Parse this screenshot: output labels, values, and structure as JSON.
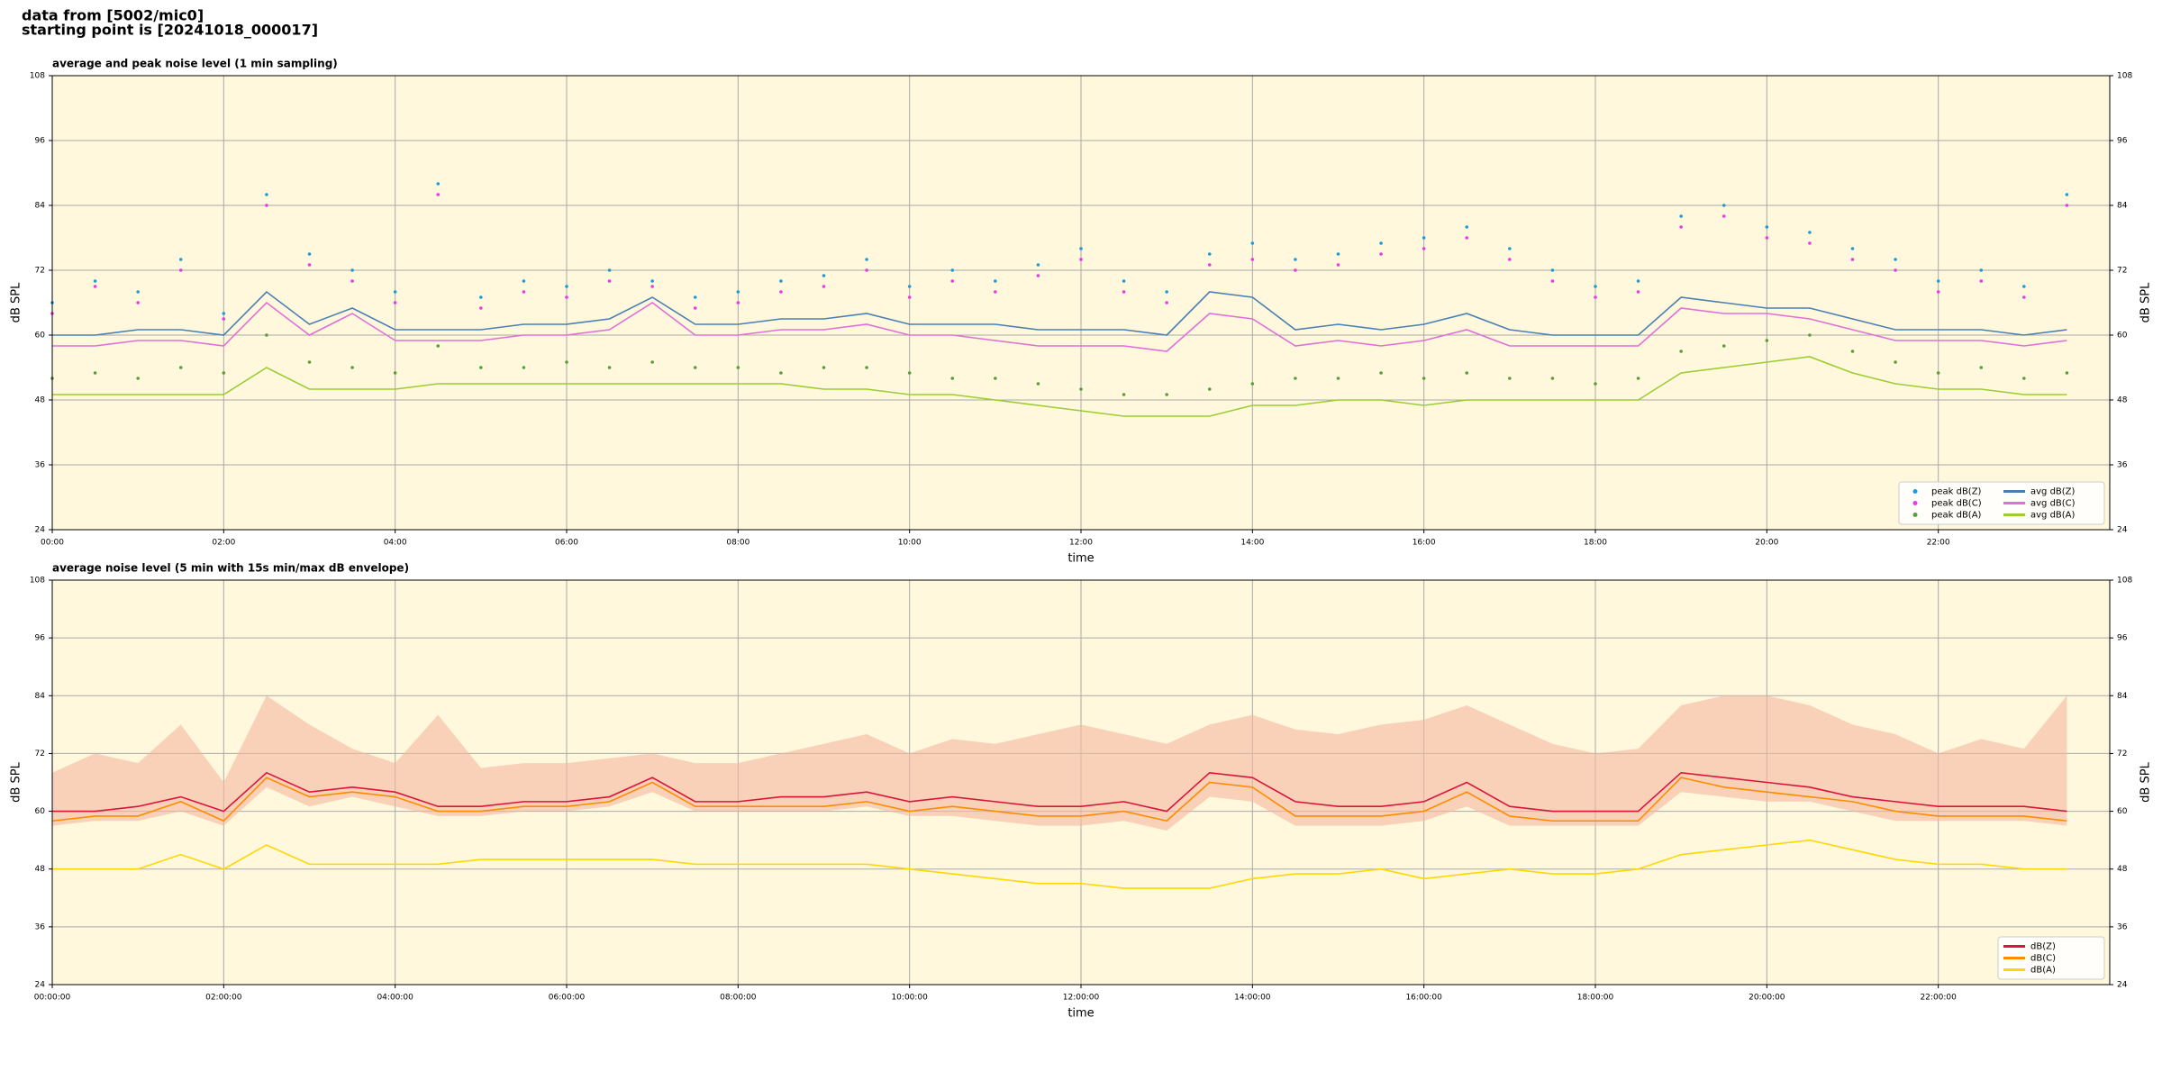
{
  "header": {
    "line1": "data from [5002/mic0]",
    "line2": "starting point is [20241018_000017]"
  },
  "chart_data": [
    {
      "type": "line",
      "title": "average and peak noise level (1 min sampling)",
      "xlabel": "time",
      "ylabel": "dB SPL",
      "x": [
        0,
        30,
        60,
        90,
        120,
        150,
        180,
        210,
        240,
        270,
        300,
        330,
        360,
        390,
        420,
        450,
        480,
        510,
        540,
        570,
        600,
        630,
        660,
        690,
        720,
        750,
        780,
        810,
        840,
        870,
        900,
        930,
        960,
        990,
        1020,
        1050,
        1080,
        1110,
        1140,
        1170,
        1200,
        1230,
        1260,
        1290,
        1320,
        1350,
        1380,
        1410
      ],
      "xlim": [
        0,
        1440
      ],
      "xticks": [
        {
          "value": 0,
          "label": "00:00"
        },
        {
          "value": 120,
          "label": "02:00"
        },
        {
          "value": 240,
          "label": "04:00"
        },
        {
          "value": 360,
          "label": "06:00"
        },
        {
          "value": 480,
          "label": "08:00"
        },
        {
          "value": 600,
          "label": "10:00"
        },
        {
          "value": 720,
          "label": "12:00"
        },
        {
          "value": 840,
          "label": "14:00"
        },
        {
          "value": 960,
          "label": "16:00"
        },
        {
          "value": 1080,
          "label": "18:00"
        },
        {
          "value": 1200,
          "label": "20:00"
        },
        {
          "value": 1320,
          "label": "22:00"
        }
      ],
      "ylim": [
        24,
        108
      ],
      "yticks": [
        24,
        36,
        48,
        60,
        72,
        84,
        96,
        108
      ],
      "grid": true,
      "legend": "lower right",
      "legend_columns": 2,
      "background": "#fff8dc",
      "series": [
        {
          "name": "peak dB(Z)",
          "style": "scatter",
          "color": "#1f9bd6",
          "values": [
            66,
            70,
            68,
            74,
            64,
            86,
            75,
            72,
            68,
            88,
            67,
            70,
            69,
            72,
            70,
            67,
            68,
            70,
            71,
            74,
            69,
            72,
            70,
            73,
            76,
            70,
            68,
            75,
            77,
            74,
            75,
            77,
            78,
            80,
            76,
            72,
            69,
            70,
            82,
            84,
            80,
            79,
            76,
            74,
            70,
            72,
            69,
            86
          ]
        },
        {
          "name": "peak dB(C)",
          "style": "scatter",
          "color": "#e83be0",
          "values": [
            64,
            69,
            66,
            72,
            63,
            84,
            73,
            70,
            66,
            86,
            65,
            68,
            67,
            70,
            69,
            65,
            66,
            68,
            69,
            72,
            67,
            70,
            68,
            71,
            74,
            68,
            66,
            73,
            74,
            72,
            73,
            75,
            76,
            78,
            74,
            70,
            67,
            68,
            80,
            82,
            78,
            77,
            74,
            72,
            68,
            70,
            67,
            84
          ]
        },
        {
          "name": "peak dB(A)",
          "style": "scatter",
          "color": "#5a9e3a",
          "values": [
            52,
            53,
            52,
            54,
            53,
            60,
            55,
            54,
            53,
            58,
            54,
            54,
            55,
            54,
            55,
            54,
            54,
            53,
            54,
            54,
            53,
            52,
            52,
            51,
            50,
            49,
            49,
            50,
            51,
            52,
            52,
            53,
            52,
            53,
            52,
            52,
            51,
            52,
            57,
            58,
            59,
            60,
            57,
            55,
            53,
            54,
            52,
            53
          ]
        },
        {
          "name": "avg dB(Z)",
          "style": "line",
          "color": "#4a7fb5",
          "values": [
            60,
            60,
            61,
            61,
            60,
            68,
            62,
            65,
            61,
            61,
            61,
            62,
            62,
            63,
            67,
            62,
            62,
            63,
            63,
            64,
            62,
            62,
            62,
            61,
            61,
            61,
            60,
            68,
            67,
            61,
            62,
            61,
            62,
            64,
            61,
            60,
            60,
            60,
            67,
            66,
            65,
            65,
            63,
            61,
            61,
            61,
            60,
            61
          ]
        },
        {
          "name": "avg dB(C)",
          "style": "line",
          "color": "#e070d8",
          "values": [
            58,
            58,
            59,
            59,
            58,
            66,
            60,
            64,
            59,
            59,
            59,
            60,
            60,
            61,
            66,
            60,
            60,
            61,
            61,
            62,
            60,
            60,
            59,
            58,
            58,
            58,
            57,
            64,
            63,
            58,
            59,
            58,
            59,
            61,
            58,
            58,
            58,
            58,
            65,
            64,
            64,
            63,
            61,
            59,
            59,
            59,
            58,
            59
          ]
        },
        {
          "name": "avg dB(A)",
          "style": "line",
          "color": "#9acd32",
          "values": [
            49,
            49,
            49,
            49,
            49,
            54,
            50,
            50,
            50,
            51,
            51,
            51,
            51,
            51,
            51,
            51,
            51,
            51,
            50,
            50,
            49,
            49,
            48,
            47,
            46,
            45,
            45,
            45,
            47,
            47,
            48,
            48,
            47,
            48,
            48,
            48,
            48,
            48,
            53,
            54,
            55,
            56,
            53,
            51,
            50,
            50,
            49,
            49
          ]
        }
      ]
    },
    {
      "type": "line",
      "title": "average noise level (5 min with 15s min/max dB envelope)",
      "xlabel": "time",
      "ylabel": "dB SPL",
      "x": [
        0,
        30,
        60,
        90,
        120,
        150,
        180,
        210,
        240,
        270,
        300,
        330,
        360,
        390,
        420,
        450,
        480,
        510,
        540,
        570,
        600,
        630,
        660,
        690,
        720,
        750,
        780,
        810,
        840,
        870,
        900,
        930,
        960,
        990,
        1020,
        1050,
        1080,
        1110,
        1140,
        1170,
        1200,
        1230,
        1260,
        1290,
        1320,
        1350,
        1380,
        1410
      ],
      "xlim": [
        0,
        1440
      ],
      "xticks": [
        {
          "value": 0,
          "label": "00:00:00"
        },
        {
          "value": 120,
          "label": "02:00:00"
        },
        {
          "value": 240,
          "label": "04:00:00"
        },
        {
          "value": 360,
          "label": "06:00:00"
        },
        {
          "value": 480,
          "label": "08:00:00"
        },
        {
          "value": 600,
          "label": "10:00:00"
        },
        {
          "value": 720,
          "label": "12:00:00"
        },
        {
          "value": 840,
          "label": "14:00:00"
        },
        {
          "value": 960,
          "label": "16:00:00"
        },
        {
          "value": 1080,
          "label": "18:00:00"
        },
        {
          "value": 1200,
          "label": "20:00:00"
        },
        {
          "value": 1320,
          "label": "22:00:00"
        }
      ],
      "ylim": [
        24,
        108
      ],
      "yticks": [
        24,
        36,
        48,
        60,
        72,
        84,
        96,
        108
      ],
      "grid": true,
      "legend": "lower right",
      "legend_columns": 1,
      "background": "#fff8dc",
      "envelope": {
        "color": "#f4b8a0",
        "lower": [
          57,
          58,
          58,
          60,
          57,
          65,
          61,
          63,
          61,
          59,
          59,
          60,
          60,
          61,
          64,
          60,
          60,
          60,
          60,
          61,
          59,
          59,
          58,
          57,
          57,
          58,
          56,
          63,
          62,
          57,
          57,
          57,
          58,
          61,
          57,
          57,
          57,
          57,
          64,
          63,
          62,
          62,
          60,
          58,
          58,
          58,
          58,
          57
        ],
        "upper": [
          68,
          72,
          70,
          78,
          66,
          84,
          78,
          73,
          70,
          80,
          69,
          70,
          70,
          71,
          72,
          70,
          70,
          72,
          74,
          76,
          72,
          75,
          74,
          76,
          78,
          76,
          74,
          78,
          80,
          77,
          76,
          78,
          79,
          82,
          78,
          74,
          72,
          73,
          82,
          84,
          84,
          82,
          78,
          76,
          72,
          75,
          73,
          84
        ]
      },
      "series": [
        {
          "name": "dB(Z)",
          "style": "line",
          "color": "#dc143c",
          "values": [
            60,
            60,
            61,
            63,
            60,
            68,
            64,
            65,
            64,
            61,
            61,
            62,
            62,
            63,
            67,
            62,
            62,
            63,
            63,
            64,
            62,
            63,
            62,
            61,
            61,
            62,
            60,
            68,
            67,
            62,
            61,
            61,
            62,
            66,
            61,
            60,
            60,
            60,
            68,
            67,
            66,
            65,
            63,
            62,
            61,
            61,
            61,
            60
          ]
        },
        {
          "name": "dB(C)",
          "style": "line",
          "color": "#ff8c00",
          "values": [
            58,
            59,
            59,
            62,
            58,
            67,
            63,
            64,
            63,
            60,
            60,
            61,
            61,
            62,
            66,
            61,
            61,
            61,
            61,
            62,
            60,
            61,
            60,
            59,
            59,
            60,
            58,
            66,
            65,
            59,
            59,
            59,
            60,
            64,
            59,
            58,
            58,
            58,
            67,
            65,
            64,
            63,
            62,
            60,
            59,
            59,
            59,
            58
          ]
        },
        {
          "name": "dB(A)",
          "style": "line",
          "color": "#ffd700",
          "values": [
            48,
            48,
            48,
            51,
            48,
            53,
            49,
            49,
            49,
            49,
            50,
            50,
            50,
            50,
            50,
            49,
            49,
            49,
            49,
            49,
            48,
            47,
            46,
            45,
            45,
            44,
            44,
            44,
            46,
            47,
            47,
            48,
            46,
            47,
            48,
            47,
            47,
            48,
            51,
            52,
            53,
            54,
            52,
            50,
            49,
            49,
            48,
            48
          ]
        }
      ]
    }
  ]
}
